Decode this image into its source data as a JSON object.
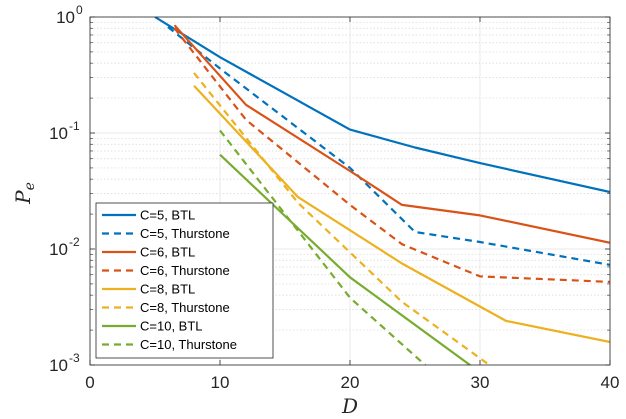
{
  "chart_data": {
    "type": "line",
    "xlabel": "D",
    "ylabel_base": "P",
    "ylabel_sub": "e",
    "xlim": [
      0,
      40
    ],
    "ylim": [
      0.001,
      1
    ],
    "yscale": "log",
    "grid": true,
    "legend_position": "bottom-left",
    "x_ticks": [
      {
        "value": 0,
        "label": "0"
      },
      {
        "value": 10,
        "label": "10"
      },
      {
        "value": 20,
        "label": "20"
      },
      {
        "value": 30,
        "label": "30"
      },
      {
        "value": 40,
        "label": "40"
      }
    ],
    "y_ticks": [
      {
        "value": 1,
        "base": "10",
        "exp": "0"
      },
      {
        "value": 0.1,
        "base": "10",
        "exp": "-1"
      },
      {
        "value": 0.01,
        "base": "10",
        "exp": "-2"
      },
      {
        "value": 0.001,
        "base": "10",
        "exp": "-3"
      }
    ],
    "series": [
      {
        "name": "C=5, BTL",
        "color": "#0072BD",
        "dash": "solid",
        "x": [
          5,
          10,
          20,
          25,
          30,
          40
        ],
        "y": [
          1.0,
          0.45,
          0.107,
          0.075,
          0.055,
          0.031
        ]
      },
      {
        "name": "C=5, Thurstone",
        "color": "#0072BD",
        "dash": "dashed",
        "x": [
          6,
          10,
          20,
          25,
          30,
          40
        ],
        "y": [
          0.82,
          0.36,
          0.05,
          0.014,
          0.0115,
          0.0073
        ]
      },
      {
        "name": "C=6, BTL",
        "color": "#D95319",
        "dash": "solid",
        "x": [
          6.5,
          12,
          20,
          24,
          30,
          40
        ],
        "y": [
          0.85,
          0.175,
          0.047,
          0.024,
          0.0195,
          0.0113
        ]
      },
      {
        "name": "C=6, Thurstone",
        "color": "#D95319",
        "dash": "dashed",
        "x": [
          6.5,
          12,
          20,
          24,
          30,
          40
        ],
        "y": [
          0.8,
          0.13,
          0.024,
          0.011,
          0.0058,
          0.0052
        ]
      },
      {
        "name": "C=8, BTL",
        "color": "#EDB120",
        "dash": "solid",
        "x": [
          8,
          16,
          24,
          32,
          40
        ],
        "y": [
          0.255,
          0.028,
          0.0075,
          0.0024,
          0.00158
        ]
      },
      {
        "name": "C=8, Thurstone",
        "color": "#EDB120",
        "dash": "dashed",
        "x": [
          8,
          16,
          24,
          31
        ],
        "y": [
          0.33,
          0.025,
          0.0035,
          0.00095
        ]
      },
      {
        "name": "C=10, BTL",
        "color": "#77AC30",
        "dash": "solid",
        "x": [
          10,
          20,
          29.5
        ],
        "y": [
          0.065,
          0.0057,
          0.00095
        ]
      },
      {
        "name": "C=10, Thurstone",
        "color": "#77AC30",
        "dash": "dashed",
        "x": [
          10,
          20,
          26
        ],
        "y": [
          0.105,
          0.0038,
          0.00095
        ]
      }
    ]
  }
}
